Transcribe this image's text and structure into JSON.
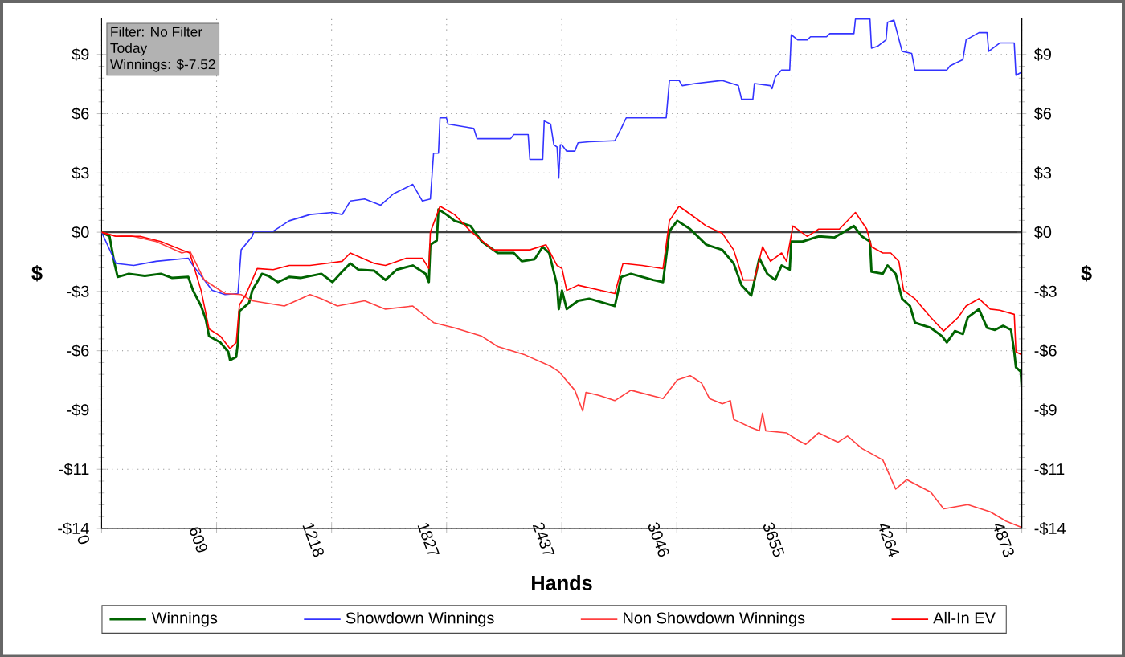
{
  "chart_data": {
    "type": "line",
    "xlabel": "Hands",
    "ylabel": "$",
    "y2label": "$",
    "annotations": [
      "Filter: No Filter",
      "Today",
      "Winnings: $-7.52"
    ],
    "xlim": [
      0,
      4873
    ],
    "xticks": [
      0,
      609,
      1218,
      1827,
      2437,
      3046,
      3655,
      4264,
      4873
    ],
    "ylim": [
      -14.25,
      10.3
    ],
    "yticks": [
      {
        "value": 8.55,
        "label": "$9"
      },
      {
        "value": 5.7,
        "label": "$6"
      },
      {
        "value": 2.85,
        "label": "$3"
      },
      {
        "value": 0,
        "label": "$0"
      },
      {
        "value": -2.85,
        "label": "-$3"
      },
      {
        "value": -5.7,
        "label": "-$6"
      },
      {
        "value": -8.55,
        "label": "-$9"
      },
      {
        "value": -11.4,
        "label": "-$11"
      },
      {
        "value": -14.25,
        "label": "-$14"
      }
    ],
    "y2lim": [
      -14.25,
      10.3
    ],
    "y2ticks": [
      {
        "value": 8.55,
        "label": "$9"
      },
      {
        "value": 5.7,
        "label": "$6"
      },
      {
        "value": 2.85,
        "label": "$3"
      },
      {
        "value": 0,
        "label": "$0"
      },
      {
        "value": -2.85,
        "label": "-$3"
      },
      {
        "value": -5.7,
        "label": "-$6"
      },
      {
        "value": -8.55,
        "label": "-$9"
      },
      {
        "value": -11.4,
        "label": "-$11"
      },
      {
        "value": -14.25,
        "label": "-$14"
      }
    ],
    "grid": true,
    "legend": "bottom",
    "ref_lines": [
      {
        "axis": "y",
        "value": 0,
        "color": "#404040"
      }
    ],
    "series": [
      {
        "name": "Winnings",
        "color": "#006400",
        "x": [
          0,
          42,
          68,
          85,
          144,
          229,
          314,
          374,
          459,
          484,
          527,
          552,
          569,
          629,
          671,
          680,
          713,
          722,
          730,
          781,
          798,
          849,
          883,
          934,
          994,
          1053,
          1164,
          1223,
          1274,
          1317,
          1359,
          1444,
          1503,
          1563,
          1648,
          1716,
          1733,
          1741,
          1775,
          1784,
          1826,
          1869,
          1954,
          2013,
          2098,
          2183,
          2225,
          2293,
          2336,
          2370,
          2412,
          2421,
          2438,
          2463,
          2523,
          2582,
          2718,
          2752,
          2803,
          2922,
          2973,
          3007,
          3049,
          3117,
          3202,
          3287,
          3347,
          3389,
          3440,
          3483,
          3525,
          3567,
          3601,
          3644,
          3652,
          3712,
          3797,
          3882,
          3984,
          4026,
          4069,
          4077,
          4137,
          4162,
          4205,
          4239,
          4281,
          4307,
          4391,
          4451,
          4476,
          4519,
          4561,
          4587,
          4646,
          4689,
          4731,
          4774,
          4816,
          4833,
          4842,
          4867,
          4873
        ],
        "values": [
          0,
          -0.2,
          -1.5,
          -2.15,
          -2.0,
          -2.1,
          -2.0,
          -2.2,
          -2.15,
          -2.8,
          -3.55,
          -4.2,
          -5.0,
          -5.3,
          -5.75,
          -6.15,
          -6.0,
          -5.3,
          -3.8,
          -3.4,
          -2.8,
          -2.0,
          -2.1,
          -2.4,
          -2.15,
          -2.2,
          -2.0,
          -2.4,
          -1.9,
          -1.5,
          -1.8,
          -1.85,
          -2.3,
          -1.8,
          -1.6,
          -2.0,
          -2.4,
          -0.6,
          -0.4,
          1.1,
          0.85,
          0.55,
          0.3,
          -0.45,
          -1.0,
          -1.0,
          -1.4,
          -1.3,
          -0.7,
          -1.0,
          -2.55,
          -3.7,
          -2.8,
          -3.7,
          -3.3,
          -3.2,
          -3.55,
          -2.15,
          -2.0,
          -2.3,
          -2.4,
          0.05,
          0.55,
          0.15,
          -0.6,
          -0.85,
          -1.5,
          -2.55,
          -3.05,
          -1.25,
          -2.0,
          -2.3,
          -1.6,
          -1.8,
          -0.45,
          -0.45,
          -0.2,
          -0.25,
          0.3,
          -0.2,
          -0.45,
          -1.9,
          -2.0,
          -1.6,
          -2.0,
          -3.2,
          -3.55,
          -4.35,
          -4.6,
          -5.0,
          -5.3,
          -4.75,
          -4.9,
          -4.1,
          -3.7,
          -4.6,
          -4.7,
          -4.5,
          -4.7,
          -5.75,
          -6.5,
          -6.7,
          -7.52
        ]
      },
      {
        "name": "Showdown Winnings",
        "color": "#3333ff",
        "x": [
          0,
          76,
          170,
          289,
          459,
          484,
          544,
          586,
          654,
          722,
          739,
          798,
          807,
          909,
          994,
          1104,
          1223,
          1274,
          1317,
          1393,
          1478,
          1546,
          1648,
          1699,
          1741,
          1758,
          1784,
          1792,
          1826,
          1835,
          1971,
          1988,
          2166,
          2183,
          2259,
          2268,
          2336,
          2344,
          2378,
          2395,
          2412,
          2421,
          2429,
          2438,
          2463,
          2506,
          2523,
          2582,
          2718,
          2752,
          2778,
          2990,
          3007,
          3058,
          3075,
          3143,
          3287,
          3372,
          3389,
          3449,
          3457,
          3542,
          3550,
          3567,
          3601,
          3644,
          3652,
          3686,
          3737,
          3754,
          3839,
          3856,
          3984,
          3992,
          4069,
          4077,
          4111,
          4154,
          4162,
          4196,
          4239,
          4290,
          4307,
          4476,
          4493,
          4561,
          4578,
          4646,
          4689,
          4698,
          4756,
          4833,
          4842,
          4873
        ],
        "values": [
          0,
          -1.5,
          -1.6,
          -1.4,
          -1.25,
          -1.6,
          -2.3,
          -2.8,
          -3.0,
          -2.95,
          -0.85,
          -0.2,
          0.05,
          0.05,
          0.55,
          0.85,
          0.95,
          0.85,
          1.5,
          1.6,
          1.3,
          1.85,
          2.3,
          1.5,
          1.6,
          3.8,
          3.8,
          5.5,
          5.5,
          5.2,
          5.0,
          4.5,
          4.5,
          4.7,
          4.7,
          3.5,
          3.5,
          5.35,
          5.2,
          4.2,
          4.1,
          2.6,
          4.2,
          4.2,
          3.9,
          3.9,
          4.3,
          4.35,
          4.4,
          5.0,
          5.5,
          5.5,
          7.3,
          7.3,
          7.05,
          7.15,
          7.3,
          7.05,
          6.4,
          6.4,
          7.15,
          7.05,
          6.9,
          7.45,
          7.8,
          7.8,
          9.5,
          9.25,
          9.25,
          9.4,
          9.4,
          9.55,
          9.55,
          10.25,
          10.25,
          8.85,
          8.95,
          9.25,
          10.1,
          10.2,
          8.7,
          8.6,
          7.8,
          7.8,
          8.0,
          8.3,
          9.25,
          9.6,
          9.6,
          8.7,
          9.1,
          9.1,
          7.55,
          7.7
        ]
      },
      {
        "name": "Non Showdown Winnings",
        "color": "#ff4040",
        "x": [
          0,
          76,
          144,
          289,
          425,
          467,
          544,
          654,
          739,
          798,
          968,
          1104,
          1164,
          1249,
          1393,
          1503,
          1648,
          1758,
          1869,
          2013,
          2098,
          2242,
          2378,
          2421,
          2506,
          2548,
          2565,
          2633,
          2718,
          2803,
          2973,
          3049,
          3117,
          3177,
          3219,
          3287,
          3330,
          3347,
          3440,
          3483,
          3500,
          3517,
          3627,
          3686,
          3729,
          3797,
          3899,
          3950,
          4026,
          4137,
          4205,
          4264,
          4391,
          4459,
          4587,
          4706,
          4791,
          4873
        ],
        "values": [
          0,
          -0.2,
          -0.15,
          -0.45,
          -1.0,
          -0.9,
          -2.3,
          -2.95,
          -3.0,
          -3.3,
          -3.55,
          -3.0,
          -3.2,
          -3.55,
          -3.3,
          -3.7,
          -3.55,
          -4.35,
          -4.6,
          -5.0,
          -5.5,
          -5.9,
          -6.45,
          -6.7,
          -7.6,
          -8.6,
          -7.7,
          -7.85,
          -8.1,
          -7.6,
          -8.0,
          -7.1,
          -6.9,
          -7.25,
          -8.0,
          -8.25,
          -8.1,
          -9.0,
          -9.4,
          -9.55,
          -8.7,
          -9.55,
          -9.65,
          -10.0,
          -10.2,
          -9.65,
          -10.1,
          -9.8,
          -10.4,
          -10.95,
          -12.35,
          -11.9,
          -12.5,
          -13.3,
          -13.1,
          -13.45,
          -13.9,
          -14.2
        ]
      },
      {
        "name": "All-In EV",
        "color": "#ff0000",
        "x": [
          0,
          76,
          204,
          314,
          425,
          467,
          527,
          569,
          629,
          680,
          713,
          730,
          764,
          824,
          909,
          994,
          1104,
          1189,
          1274,
          1317,
          1444,
          1503,
          1614,
          1699,
          1733,
          1741,
          1792,
          1869,
          1954,
          2073,
          2268,
          2353,
          2412,
          2438,
          2463,
          2523,
          2718,
          2761,
          2862,
          2973,
          3007,
          3058,
          3143,
          3202,
          3287,
          3347,
          3398,
          3457,
          3500,
          3542,
          3601,
          3627,
          3661,
          3737,
          3797,
          3907,
          3992,
          4052,
          4077,
          4137,
          4179,
          4222,
          4247,
          4307,
          4391,
          4459,
          4536,
          4578,
          4646,
          4706,
          4756,
          4833,
          4842,
          4873
        ],
        "values": [
          0,
          -0.2,
          -0.2,
          -0.45,
          -0.85,
          -1.0,
          -2.8,
          -4.65,
          -5.0,
          -5.6,
          -5.3,
          -3.5,
          -3.0,
          -1.75,
          -1.8,
          -1.6,
          -1.6,
          -1.5,
          -1.4,
          -1.0,
          -1.5,
          -1.6,
          -1.25,
          -1.25,
          -1.75,
          0.0,
          1.25,
          0.85,
          0.05,
          -0.85,
          -0.85,
          -0.6,
          -1.6,
          -1.75,
          -2.8,
          -2.55,
          -2.95,
          -1.5,
          -1.6,
          -1.75,
          0.55,
          1.25,
          0.7,
          0.3,
          -0.05,
          -0.85,
          -2.3,
          -2.3,
          -0.7,
          -1.4,
          -1.0,
          -1.4,
          0.3,
          -0.2,
          0.15,
          0.15,
          0.95,
          0.15,
          -0.7,
          -1.0,
          -1.0,
          -1.4,
          -2.8,
          -3.2,
          -4.1,
          -4.75,
          -4.1,
          -3.55,
          -3.2,
          -3.7,
          -3.75,
          -3.95,
          -5.75,
          -5.9
        ]
      }
    ]
  }
}
